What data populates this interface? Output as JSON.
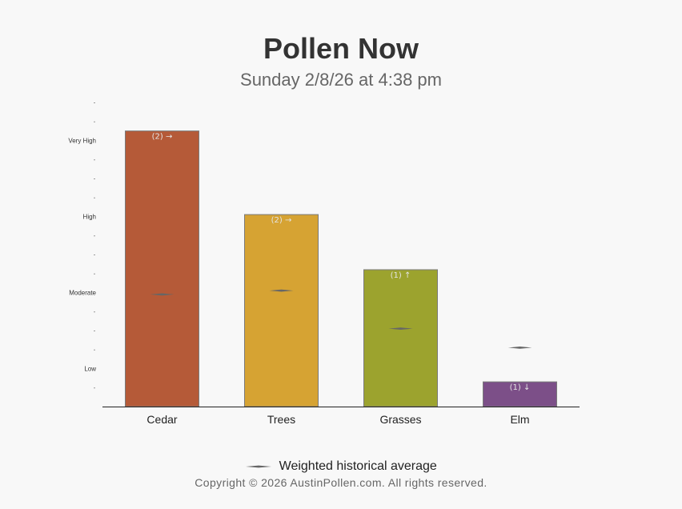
{
  "title": "Pollen Now",
  "subtitle": "Sunday 2/8/26 at 4:38 pm",
  "legend": {
    "label": "Weighted historical average"
  },
  "copyright": "Copyright © 2026 AustinPollen.com.  All rights reserved.",
  "chart_data": {
    "type": "bar",
    "categories": [
      "Cedar",
      "Trees",
      "Grasses",
      "Elm"
    ],
    "values": [
      14.5,
      10.1,
      7.2,
      1.3
    ],
    "annotations": [
      "(2) →",
      "(2) →",
      "(1) ↑",
      "(1) ↓"
    ],
    "historical_average": [
      5.9,
      6.1,
      4.1,
      3.1
    ],
    "y_levels": [
      {
        "label": "Low",
        "value": 2
      },
      {
        "label": "Moderate",
        "value": 6
      },
      {
        "label": "High",
        "value": 10
      },
      {
        "label": "Very High",
        "value": 14
      }
    ],
    "ylim": [
      0,
      16
    ],
    "colors": [
      "#b55a38",
      "#d6a333",
      "#9ca32e",
      "#7c4f88"
    ],
    "average_marker_color": "#666666"
  }
}
